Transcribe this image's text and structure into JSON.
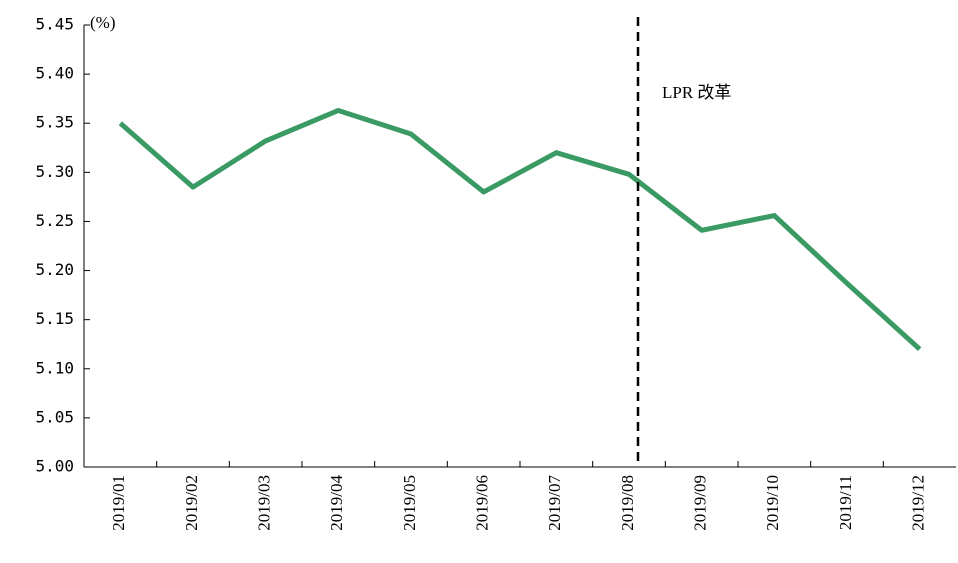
{
  "chart_data": {
    "type": "line",
    "y_label": "(%)",
    "categories": [
      "2019/01",
      "2019/02",
      "2019/03",
      "2019/04",
      "2019/05",
      "2019/06",
      "2019/07",
      "2019/08",
      "2019/09",
      "2019/10",
      "2019/11",
      "2019/12"
    ],
    "series": [
      {
        "color": "#3a9a63",
        "values": [
          5.35,
          5.285,
          5.332,
          5.363,
          5.339,
          5.28,
          5.32,
          5.298,
          5.241,
          5.256,
          5.187,
          5.12
        ]
      }
    ],
    "ylim": [
      5,
      5.45
    ],
    "yticks": [
      {
        "value": 5,
        "label": "5.00"
      },
      5.05,
      {
        "value": 5.1,
        "label": "5.10"
      },
      5.15,
      {
        "value": 5.2,
        "label": "5.20"
      },
      5.25,
      {
        "value": 5.3,
        "label": "5.30"
      },
      5.35,
      {
        "value": 5.4,
        "label": "5.40"
      },
      5.45
    ],
    "annotations": [
      {
        "text": "LPR 改革",
        "x": "2019/08"
      }
    ]
  }
}
